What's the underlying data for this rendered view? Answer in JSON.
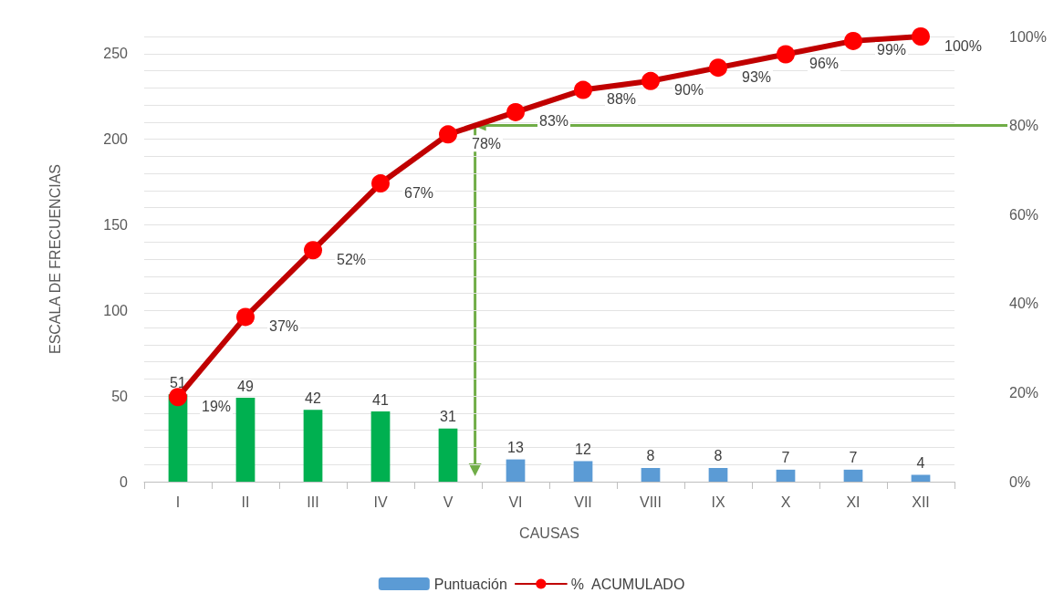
{
  "chart_data": {
    "type": "bar",
    "xlabel": "CAUSAS",
    "ylabel": "ESCALA DE FRECUENCIAS",
    "categories": [
      "I",
      "II",
      "III",
      "IV",
      "V",
      "VI",
      "VII",
      "VIII",
      "IX",
      "X",
      "XI",
      "XII"
    ],
    "series": [
      {
        "name": "Puntuación",
        "color": "#5b9bd5",
        "colors": [
          "#00b050",
          "#00b050",
          "#00b050",
          "#00b050",
          "#00b050",
          "#5b9bd5",
          "#5b9bd5",
          "#5b9bd5",
          "#5b9bd5",
          "#5b9bd5",
          "#5b9bd5",
          "#5b9bd5"
        ],
        "values": [
          51,
          49,
          42,
          41,
          31,
          13,
          12,
          8,
          8,
          7,
          7,
          4
        ],
        "data_labels": true
      },
      {
        "name": "%  ACUMULADO",
        "type": "line",
        "axis": "y2",
        "color": "#c00000",
        "marker": "circle",
        "values": [
          19,
          37,
          52,
          67,
          78,
          83,
          88,
          90,
          93,
          96,
          99,
          100
        ],
        "value_labels": [
          "19%",
          "37%",
          "52%",
          "67%",
          "78%",
          "83%",
          "88%",
          "90%",
          "93%",
          "96%",
          "99%",
          "100%"
        ]
      }
    ],
    "ylim": [
      0,
      260
    ],
    "yticks": [
      0,
      50,
      100,
      150,
      200,
      250
    ],
    "y2lim": [
      0,
      100
    ],
    "y2ticks": [
      {
        "value": 0,
        "label": "0%"
      },
      {
        "value": 20,
        "label": "20%"
      },
      {
        "value": 40,
        "label": "40%"
      },
      {
        "value": 60,
        "label": "60%"
      },
      {
        "value": 80,
        "label": "80%"
      },
      {
        "value": 100,
        "label": "100%"
      }
    ],
    "ref_lines": [
      {
        "axis": "y2",
        "value": 80,
        "color": "#70ad47"
      }
    ],
    "grid": "y",
    "legend": "bottom"
  }
}
